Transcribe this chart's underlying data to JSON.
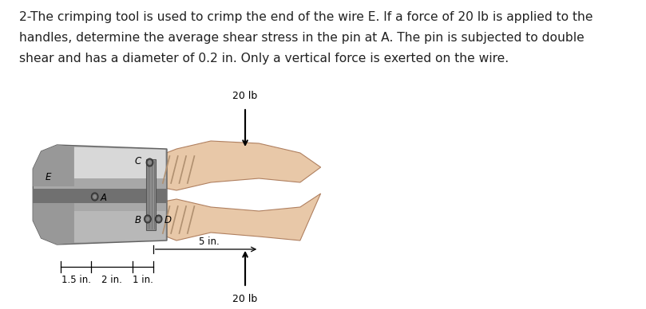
{
  "background_color": "#ffffff",
  "text_line1": "2-The crimping tool is used to crimp the end of the wire E. If a force of 20 lb is applied to the",
  "text_line2": "handles, determine the average shear stress in the pin at A. The pin is subjected to double",
  "text_line3": "shear and has a diameter of 0.2 in. Only a vertical force is exerted on the wire.",
  "label_20lb_top": "20 lb",
  "label_20lb_bottom": "20 lb",
  "label_15in": "1.5 in.",
  "label_2in": "2 in.",
  "label_1in": "1 in.",
  "label_5in": "5 in.",
  "label_E": "E",
  "label_C": "C",
  "label_A": "A",
  "label_B": "B",
  "label_D": "D",
  "text_fontsize": 11.2,
  "label_fontsize": 8.5,
  "body_color_light": "#c0c0c0",
  "body_color_mid": "#a8a8a8",
  "body_color_dark": "#707070",
  "body_highlight": "#d8d8d8",
  "handle_color": "#e8c8a8",
  "handle_edge": "#b08060",
  "handle_shadow": "#c8a880"
}
